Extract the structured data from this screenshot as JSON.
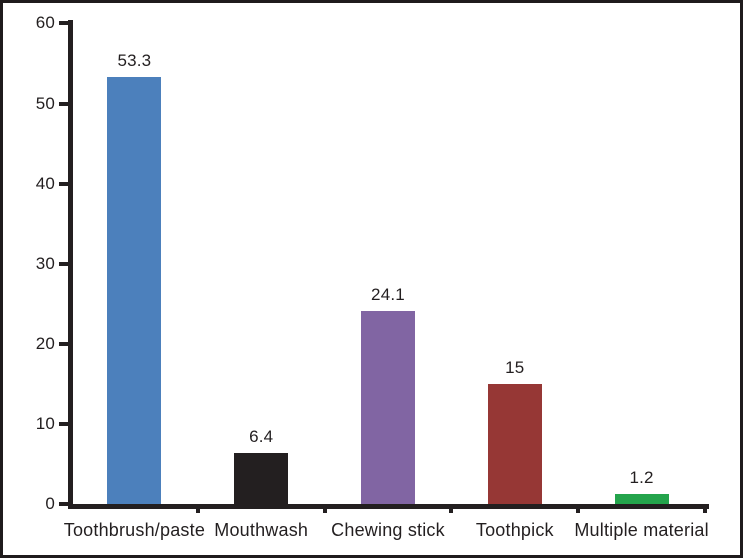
{
  "chart_data": {
    "type": "bar",
    "title": "",
    "xlabel": "",
    "ylabel": "",
    "categories": [
      "Toothbrush/paste",
      "Mouthwash",
      "Chewing stick",
      "Toothpick",
      "Multiple material"
    ],
    "values": [
      53.3,
      6.4,
      24.1,
      15,
      1.2
    ],
    "value_labels": [
      "53.3",
      "6.4",
      "24.1",
      "15",
      "1.2"
    ],
    "bar_colors": [
      "#4c80bc",
      "#231f20",
      "#8165a3",
      "#963735",
      "#24a44c"
    ],
    "ylim": [
      0,
      60
    ],
    "yticks": [
      0,
      10,
      20,
      30,
      40,
      50,
      60
    ],
    "grid": false,
    "legend": false,
    "axis_color": "#231f20",
    "frame_border_color": "#1f1b1c",
    "background_color": "#ffffff",
    "label_text_color": "#231f20"
  }
}
